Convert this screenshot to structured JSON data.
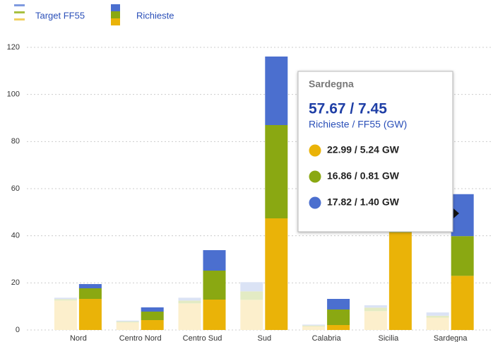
{
  "chart_data": {
    "type": "stacked_grouped_bar",
    "categories": [
      "Nord",
      "Centro Nord",
      "Centro Sud",
      "Sud",
      "Calabria",
      "Sicilia",
      "Sardegna"
    ],
    "groups": [
      {
        "name": "Target FF55",
        "series": [
          {
            "color": "#fcefcc",
            "values": [
              12.5,
              3.2,
              11.3,
              12.8,
              1.5,
              8.0,
              5.24
            ]
          },
          {
            "color": "#e3ebc4",
            "values": [
              0.6,
              0.4,
              1.2,
              3.6,
              0.4,
              1.5,
              0.81
            ]
          },
          {
            "color": "#dbe3f5",
            "values": [
              0.6,
              0.4,
              1.2,
              3.9,
              0.4,
              1.0,
              1.4
            ]
          }
        ]
      },
      {
        "name": "Richieste",
        "series": [
          {
            "color": "#eab308",
            "values": [
              13.2,
              4.2,
              12.9,
              47.4,
              2.1,
              41.4,
              22.99
            ]
          },
          {
            "color": "#8aa812",
            "values": [
              4.5,
              3.6,
              12.3,
              39.6,
              6.6,
              5.0,
              16.86
            ]
          },
          {
            "color": "#4b6fcf",
            "values": [
              1.8,
              1.8,
              8.7,
              29.1,
              4.5,
              6.0,
              17.82
            ]
          }
        ]
      }
    ],
    "ylim": [
      0,
      120
    ],
    "yticks": [
      0,
      20,
      40,
      60,
      80,
      100,
      120
    ],
    "grid": true
  },
  "tooltip": {
    "title": "Sardegna",
    "headline": "57.67 / 7.45",
    "subtitle": "Richieste / FF55 (GW)",
    "items": [
      "22.99 / 5.24 GW",
      "16.86 / 0.81 GW",
      "17.82 / 1.40 GW"
    ]
  }
}
